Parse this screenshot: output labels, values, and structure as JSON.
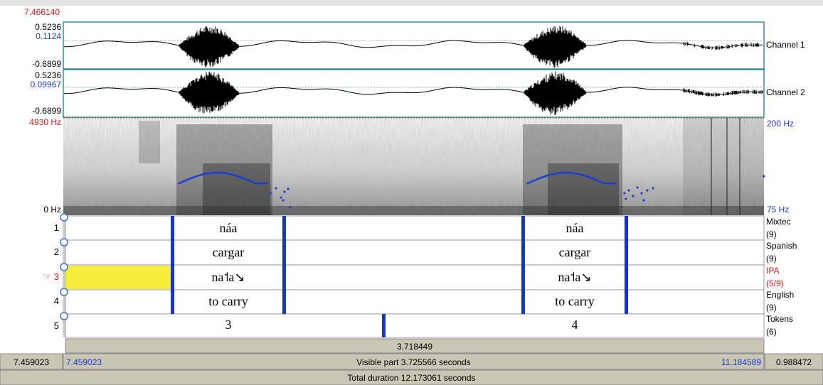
{
  "cursor_time": "7.466140",
  "channels": [
    {
      "name": "Channel 1",
      "max": "0.5236",
      "cursor_value": "0.1124",
      "min": "-0.6899"
    },
    {
      "name": "Channel 2",
      "max": "0.5236",
      "cursor_value": "0.09967",
      "min": "-0.6899"
    }
  ],
  "spectrogram": {
    "max_freq": "4930 Hz",
    "min_freq": "0 Hz",
    "pitch_max": "200 Hz",
    "pitch_min": "75 Hz"
  },
  "tiers": [
    {
      "number": "1",
      "name": "Mixtec",
      "count": "(9)",
      "items": [
        "náa",
        "náa"
      ],
      "selected": false
    },
    {
      "number": "2",
      "name": "Spanish",
      "count": "(9)",
      "items": [
        "cargar",
        "cargar"
      ],
      "selected": false
    },
    {
      "number": "3",
      "name": "IPA",
      "count": "(5/9)",
      "items": [
        "na˦a↘",
        "na˦a↘"
      ],
      "selected": true,
      "pointer_icon": "☞"
    },
    {
      "number": "4",
      "name": "English",
      "count": "(9)",
      "items": [
        "to carry",
        "to carry"
      ],
      "selected": false
    },
    {
      "number": "5",
      "name": "Tokens",
      "count": "(6)",
      "items": [
        "3",
        "4"
      ],
      "selected": false
    }
  ],
  "selection_duration": "3.718449",
  "footer": {
    "left_time": "7.459023",
    "visible_start": "7.459023",
    "visible_part": "Visible part 3.725566 seconds",
    "visible_end": "11.184589",
    "right_time": "0.988472",
    "total_duration": "Total duration 12.173061 seconds"
  },
  "colors": {
    "accent_red": "#d02020",
    "accent_blue": "#1f3fd0",
    "boundary_blue": "#1733c8",
    "selection_yellow": "#f6ee3a",
    "bar_gray": "#c9c6b6"
  }
}
